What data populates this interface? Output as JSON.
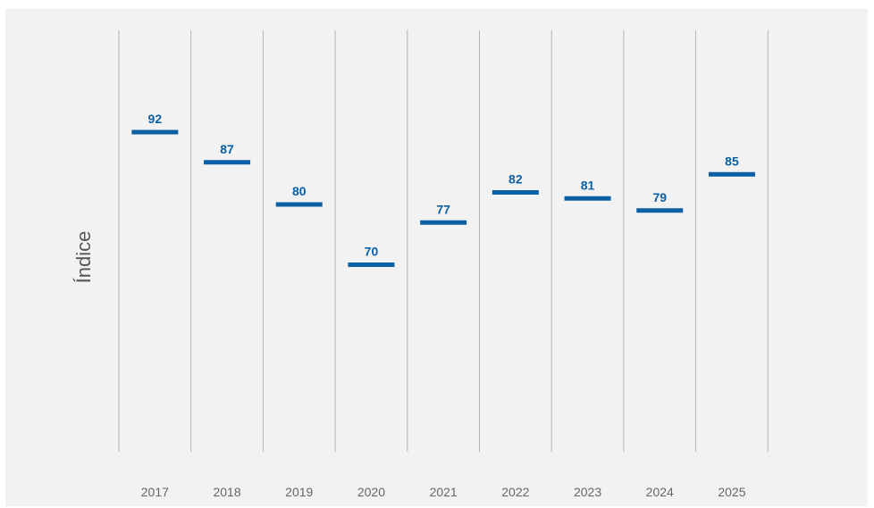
{
  "chart_data": {
    "type": "bar",
    "mark": "horizontal-tick",
    "title": "",
    "xlabel": "",
    "ylabel": "Índice",
    "categories": [
      "2017",
      "2018",
      "2019",
      "2020",
      "2021",
      "2022",
      "2023",
      "2024",
      "2025"
    ],
    "values": [
      92,
      87,
      80,
      70,
      77,
      82,
      81,
      79,
      85
    ],
    "ylim": [
      40,
      100
    ],
    "grid": "vertical separators",
    "legend": "none",
    "colors": {
      "mark": "#0b5fa5",
      "label": "#0b5fa5",
      "separator": "#b3b3b3",
      "background": "#f2f2f2"
    }
  }
}
